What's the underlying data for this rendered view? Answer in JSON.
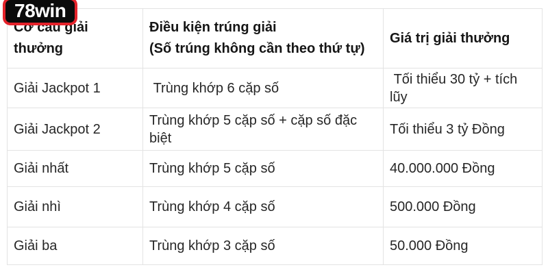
{
  "logo": {
    "text": "78win",
    "background_color": "#0b0b0b",
    "border_color": "#e5232b",
    "text_color": "#ffffff"
  },
  "table": {
    "border_color": "#e3e3e3",
    "text_color": "#262626",
    "headers": [
      "Cơ cấu giải thưởng",
      "Điều kiện trúng giải\n(Số trúng không cần theo thứ tự)",
      "Giá trị giải thưởng"
    ],
    "rows": [
      {
        "prize": "Giải Jackpot 1",
        "condition": " Trùng khớp 6 cặp số",
        "value": " Tối thiểu 30 tỷ + tích lũy"
      },
      {
        "prize": "Giải Jackpot 2",
        "condition": "Trùng khớp 5 cặp số + cặp số đặc biệt",
        "value": "Tối thiểu 3 tỷ Đồng"
      },
      {
        "prize": "Giải nhất",
        "condition": "Trùng khớp 5 cặp số",
        "value": "40.000.000 Đồng"
      },
      {
        "prize": "Giải nhì",
        "condition": "Trùng khớp 4 cặp số",
        "value": "500.000 Đồng"
      },
      {
        "prize": "Giải ba",
        "condition": "Trùng khớp 3 cặp số",
        "value": "50.000 Đồng"
      }
    ]
  }
}
